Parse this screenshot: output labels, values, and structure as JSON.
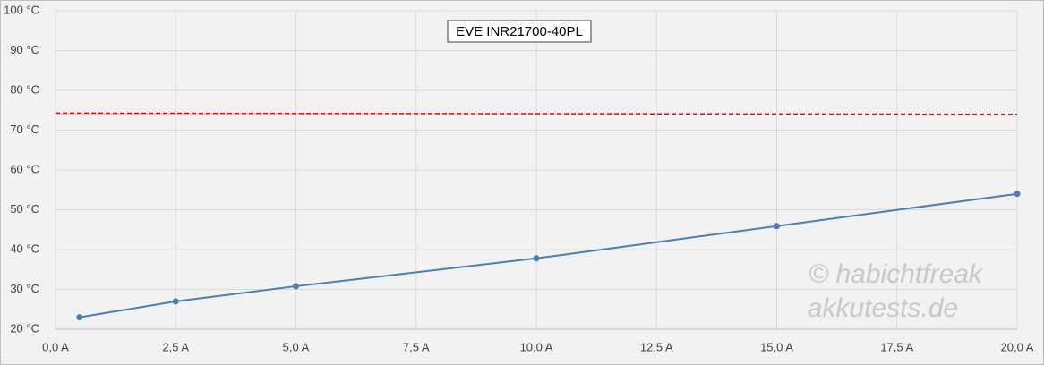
{
  "chart_data": {
    "type": "line",
    "title": "EVE INR21700-40PL",
    "watermark": [
      "© habichtfreak",
      "akkutests.de"
    ],
    "xlim": [
      0,
      20
    ],
    "ylim": [
      20,
      100
    ],
    "xticks": [
      {
        "value": 0,
        "label": "0,0 A"
      },
      {
        "value": 2.5,
        "label": "2,5 A"
      },
      {
        "value": 5,
        "label": "5,0 A"
      },
      {
        "value": 7.5,
        "label": "7,5 A"
      },
      {
        "value": 10,
        "label": "10,0 A"
      },
      {
        "value": 12.5,
        "label": "12,5 A"
      },
      {
        "value": 15,
        "label": "15,0 A"
      },
      {
        "value": 17.5,
        "label": "17,5 A"
      },
      {
        "value": 20,
        "label": "20,0 A"
      }
    ],
    "yticks": [
      {
        "value": 20,
        "label": "20 °C"
      },
      {
        "value": 30,
        "label": "30 °C"
      },
      {
        "value": 40,
        "label": "40 °C"
      },
      {
        "value": 50,
        "label": "50 °C"
      },
      {
        "value": 60,
        "label": "60 °C"
      },
      {
        "value": 70,
        "label": "70 °C"
      },
      {
        "value": 80,
        "label": "80 °C"
      },
      {
        "value": 90,
        "label": "90 °C"
      },
      {
        "value": 100,
        "label": "100 °C"
      }
    ],
    "grid": true,
    "series": [
      {
        "color": "#4a7ebb",
        "x": [
          0.5,
          2.5,
          5,
          10,
          15,
          20
        ],
        "values": [
          23,
          27,
          30.8,
          37.8,
          45.9,
          54
        ],
        "markers": true,
        "dashed": false
      },
      {
        "color": "#ff0000",
        "x": [
          0,
          20
        ],
        "values": [
          74.3,
          74.0
        ],
        "markers": false,
        "dashed": true
      }
    ]
  }
}
